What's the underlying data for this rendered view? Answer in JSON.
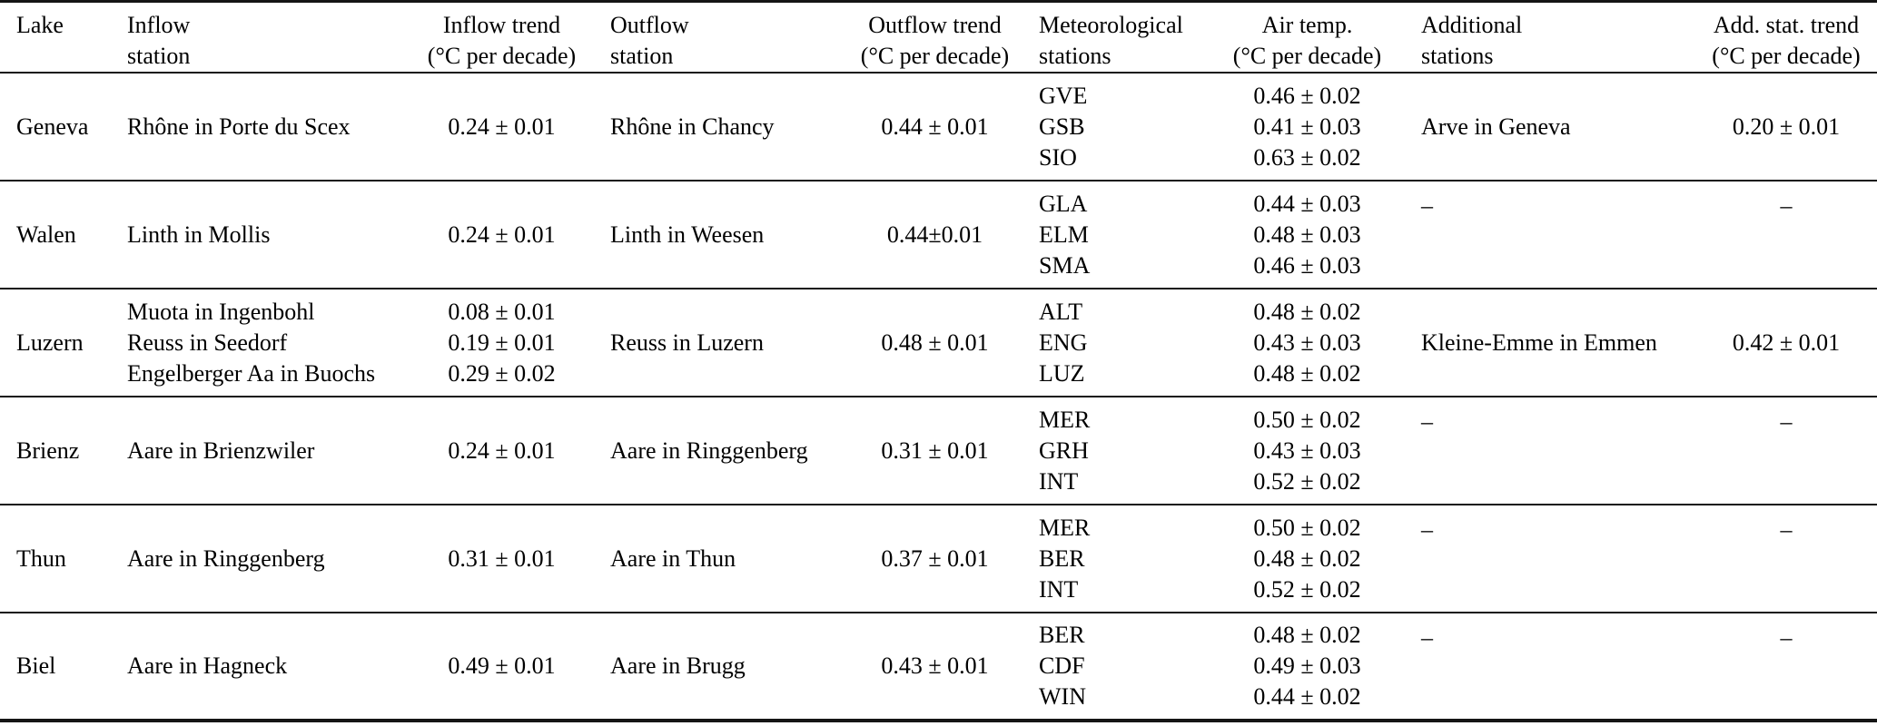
{
  "table": {
    "description": "Lake inflow, outflow and meteorological station temperature trends",
    "dash": "–",
    "headers": [
      {
        "line1": "Lake",
        "line2": ""
      },
      {
        "line1": "Inflow",
        "line2": "station"
      },
      {
        "line1": "Inflow trend",
        "line2": "(°C per decade)"
      },
      {
        "line1": "Outflow",
        "line2": "station"
      },
      {
        "line1": "Outflow trend",
        "line2": "(°C per decade)"
      },
      {
        "line1": "Meteorological",
        "line2": "stations"
      },
      {
        "line1": "Air temp.",
        "line2": "(°C per decade)"
      },
      {
        "line1": "Additional",
        "line2": "stations"
      },
      {
        "line1": "Add. stat. trend",
        "line2": "(°C per decade)"
      }
    ],
    "rows": [
      {
        "lake": "Geneva",
        "inflow_stations": [
          "Rhône in Porte du Scex"
        ],
        "inflow_trends": [
          "0.24 ± 0.01"
        ],
        "outflow_station": "Rhône in Chancy",
        "outflow_trend": "0.44 ± 0.01",
        "met_stations": [
          "GVE",
          "GSB",
          "SIO"
        ],
        "air_temps": [
          "0.46 ± 0.02",
          "0.41 ± 0.03",
          "0.63 ± 0.02"
        ],
        "additional_station": "Arve in Geneva",
        "additional_trend": "0.20 ± 0.01"
      },
      {
        "lake": "Walen",
        "inflow_stations": [
          "Linth in Mollis"
        ],
        "inflow_trends": [
          "0.24 ± 0.01"
        ],
        "outflow_station": "Linth in Weesen",
        "outflow_trend": "0.44±0.01",
        "met_stations": [
          "GLA",
          "ELM",
          "SMA"
        ],
        "air_temps": [
          "0.44 ± 0.03",
          "0.48 ± 0.03",
          "0.46 ± 0.03"
        ],
        "additional_station": "–",
        "additional_trend": "–"
      },
      {
        "lake": "Luzern",
        "inflow_stations": [
          "Muota in Ingenbohl",
          "Reuss in Seedorf",
          "Engelberger Aa in Buochs"
        ],
        "inflow_trends": [
          "0.08 ± 0.01",
          "0.19 ± 0.01",
          "0.29 ± 0.02"
        ],
        "outflow_station": "Reuss in Luzern",
        "outflow_trend": "0.48 ± 0.01",
        "met_stations": [
          "ALT",
          "ENG",
          "LUZ"
        ],
        "air_temps": [
          "0.48 ± 0.02",
          "0.43 ± 0.03",
          "0.48 ± 0.02"
        ],
        "additional_station": "Kleine-Emme in Emmen",
        "additional_trend": "0.42 ± 0.01"
      },
      {
        "lake": "Brienz",
        "inflow_stations": [
          "Aare in Brienzwiler"
        ],
        "inflow_trends": [
          "0.24 ± 0.01"
        ],
        "outflow_station": "Aare in Ringgenberg",
        "outflow_trend": "0.31 ± 0.01",
        "met_stations": [
          "MER",
          "GRH",
          "INT"
        ],
        "air_temps": [
          "0.50 ± 0.02",
          "0.43 ± 0.03",
          "0.52 ± 0.02"
        ],
        "additional_station": "–",
        "additional_trend": "–"
      },
      {
        "lake": "Thun",
        "inflow_stations": [
          "Aare in Ringgenberg"
        ],
        "inflow_trends": [
          "0.31 ± 0.01"
        ],
        "outflow_station": "Aare in Thun",
        "outflow_trend": "0.37 ± 0.01",
        "met_stations": [
          "MER",
          "BER",
          "INT"
        ],
        "air_temps": [
          "0.50 ± 0.02",
          "0.48 ± 0.02",
          "0.52 ± 0.02"
        ],
        "additional_station": "–",
        "additional_trend": "–"
      },
      {
        "lake": "Biel",
        "inflow_stations": [
          "Aare in Hagneck"
        ],
        "inflow_trends": [
          "0.49 ± 0.01"
        ],
        "outflow_station": "Aare in Brugg",
        "outflow_trend": "0.43 ± 0.01",
        "met_stations": [
          "BER",
          "CDF",
          "WIN"
        ],
        "air_temps": [
          "0.48 ± 0.02",
          "0.49 ± 0.03",
          "0.44 ± 0.02"
        ],
        "additional_station": "–",
        "additional_trend": "–"
      }
    ]
  }
}
